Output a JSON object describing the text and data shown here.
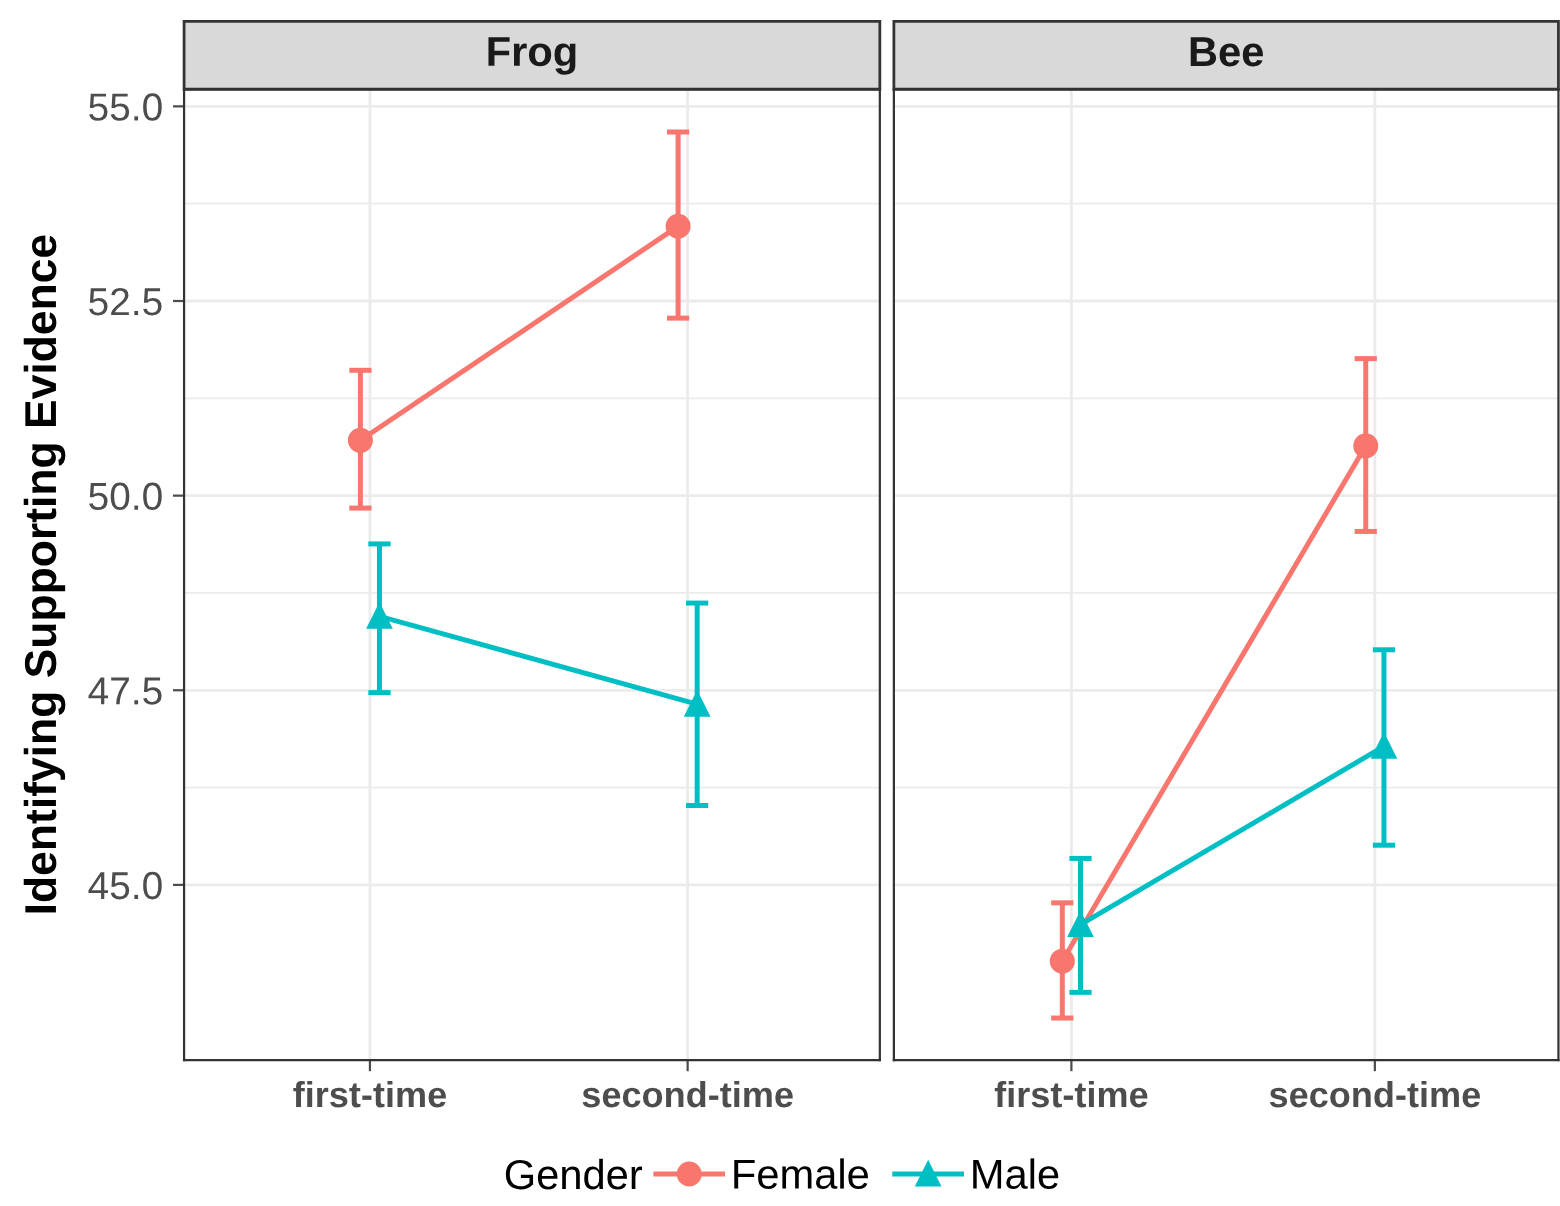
{
  "chart_data": [
    {
      "type": "line",
      "title": "Frog",
      "ylabel": "Identifying Supporting Evidence",
      "categories": [
        "first-time",
        "second-time"
      ],
      "ylim": [
        42.75,
        55.22
      ],
      "yticks": [
        {
          "value": 45,
          "label": "45.0"
        },
        47.5,
        {
          "value": 50,
          "label": "50.0"
        },
        52.5,
        {
          "value": 55,
          "label": "55.0"
        }
      ],
      "grid": true,
      "legend": "bottom",
      "legend_title": "Gender",
      "series": [
        {
          "name": "Female",
          "color": "#f8766d",
          "marker": "circle",
          "values": [
            50.71,
            53.46
          ],
          "errors": [
            [
              49.84,
              51.61
            ],
            [
              52.28,
              54.67
            ]
          ]
        },
        {
          "name": "Male",
          "color": "#00bfc4",
          "marker": "triangle",
          "values": [
            48.45,
            47.32
          ],
          "errors": [
            [
              47.47,
              49.38
            ],
            [
              46.02,
              48.62
            ]
          ]
        }
      ]
    },
    {
      "type": "line",
      "title": "Bee",
      "categories": [
        "first-time",
        "second-time"
      ],
      "ylim": [
        42.75,
        55.22
      ],
      "yticks": [
        {
          "value": 45,
          "label": null
        },
        {
          "value": 47.5,
          "label": null
        },
        {
          "value": 50,
          "label": null
        },
        {
          "value": 52.5,
          "label": null
        },
        {
          "value": 55,
          "label": null
        }
      ],
      "tick_labels": "x",
      "grid": true,
      "series": [
        {
          "name": "Female",
          "color": "#f8766d",
          "marker": "circle",
          "values": [
            44.02,
            50.64
          ],
          "errors": [
            [
              43.29,
              44.77
            ],
            [
              49.54,
              51.76
            ]
          ]
        },
        {
          "name": "Male",
          "color": "#00bfc4",
          "marker": "triangle",
          "values": [
            44.49,
            46.78
          ],
          "errors": [
            [
              43.62,
              45.34
            ],
            [
              45.51,
              48.02
            ]
          ]
        }
      ]
    }
  ]
}
